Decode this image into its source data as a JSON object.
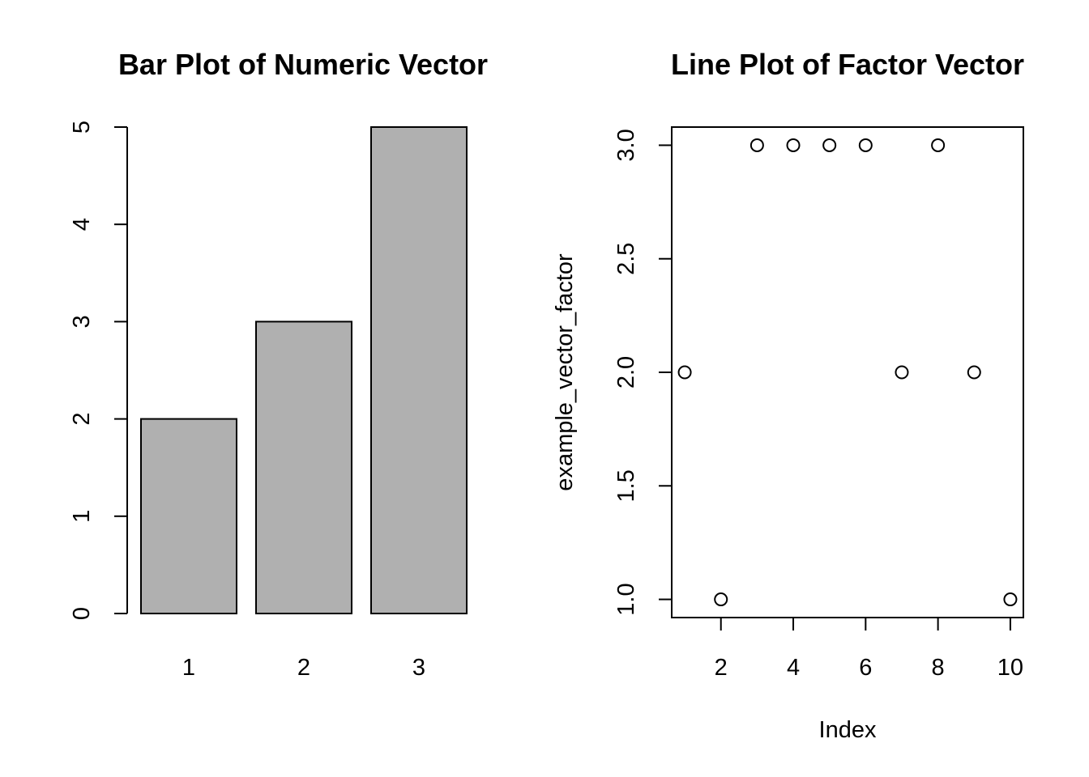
{
  "chart_data": [
    {
      "type": "bar",
      "title": "Bar Plot of Numeric Vector",
      "categories": [
        "1",
        "2",
        "3"
      ],
      "values": [
        2,
        3,
        5
      ],
      "xlabel": "",
      "ylabel": "",
      "ylim": [
        0,
        5
      ],
      "yticks": [
        "0",
        "1",
        "2",
        "3",
        "4",
        "5"
      ],
      "bar_color": "#b0b0b0",
      "grid": false
    },
    {
      "type": "scatter",
      "title": "Line Plot of Factor Vector",
      "xlabel": "Index",
      "ylabel": "example_vector_factor",
      "x": [
        1,
        2,
        3,
        4,
        5,
        6,
        7,
        8,
        9,
        10
      ],
      "y": [
        2,
        1,
        3,
        3,
        3,
        3,
        2,
        3,
        2,
        1
      ],
      "xlim": [
        0.64,
        10.36
      ],
      "ylim": [
        0.92,
        3.08
      ],
      "xticks": [
        "2",
        "4",
        "6",
        "8",
        "10"
      ],
      "yticks": [
        "1.0",
        "1.5",
        "2.0",
        "2.5",
        "3.0"
      ],
      "marker": "open-circle",
      "grid": false
    }
  ]
}
